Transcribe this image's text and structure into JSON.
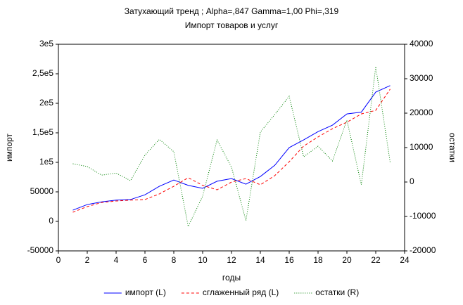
{
  "chart_data": {
    "type": "line",
    "title": "Затухающий тренд ; Alpha=,847 Gamma=1,00 Phi=,319",
    "subtitle": "Импорт товаров и услуг",
    "x_label": "годы",
    "y_label": "импорт",
    "y2_label": "остатки",
    "x": [
      1,
      2,
      3,
      4,
      5,
      6,
      7,
      8,
      9,
      10,
      11,
      12,
      13,
      14,
      15,
      16,
      17,
      18,
      19,
      20,
      21,
      22,
      23
    ],
    "series": [
      {
        "name": "импорт (L)",
        "color": "#0000ff",
        "line_style": "solid",
        "values": [
          19000,
          28500,
          33000,
          36000,
          37000,
          45000,
          59500,
          70000,
          61000,
          56000,
          68000,
          72500,
          63000,
          76000,
          95000,
          125000,
          138000,
          152000,
          163000,
          182000,
          185000,
          219000,
          230000
        ]
      },
      {
        "name": "сглаженный ряд (L)",
        "color": "#ff0000",
        "line_style": "dashed",
        "values": [
          15500,
          25000,
          32000,
          34500,
          36000,
          37000,
          46500,
          59500,
          74000,
          61000,
          53500,
          66500,
          72500,
          62000,
          77500,
          101000,
          127500,
          143000,
          157000,
          168000,
          182000,
          188000,
          224000
        ]
      },
      {
        "name": "остатки (R)",
        "color": "#008000",
        "line_style": "dotted",
        "axis": "y2",
        "values": [
          5300,
          4500,
          2000,
          2600,
          400,
          7800,
          12400,
          8800,
          -12900,
          -4100,
          12200,
          4300,
          -11200,
          14500,
          19600,
          24900,
          7300,
          10400,
          6100,
          18000,
          -800,
          33500,
          5700
        ]
      }
    ],
    "xlim": [
      0,
      24
    ],
    "xticks": [
      0,
      2,
      4,
      6,
      8,
      10,
      12,
      14,
      16,
      18,
      20,
      22,
      24
    ],
    "ylim": [
      -50000,
      300000
    ],
    "yticks": [
      -50000,
      0,
      50000,
      {
        "value": 100000,
        "label": "1e5"
      },
      {
        "value": 150000,
        "label": "1,5e5"
      },
      {
        "value": 200000,
        "label": "2e5"
      },
      {
        "value": 250000,
        "label": "2,5e5"
      },
      {
        "value": 300000,
        "label": "3e5"
      }
    ],
    "y2lim": [
      -20000,
      40000
    ],
    "y2ticks": [
      -20000,
      -10000,
      0,
      10000,
      20000,
      30000,
      40000
    ],
    "grid": false,
    "legend": "bottom"
  }
}
